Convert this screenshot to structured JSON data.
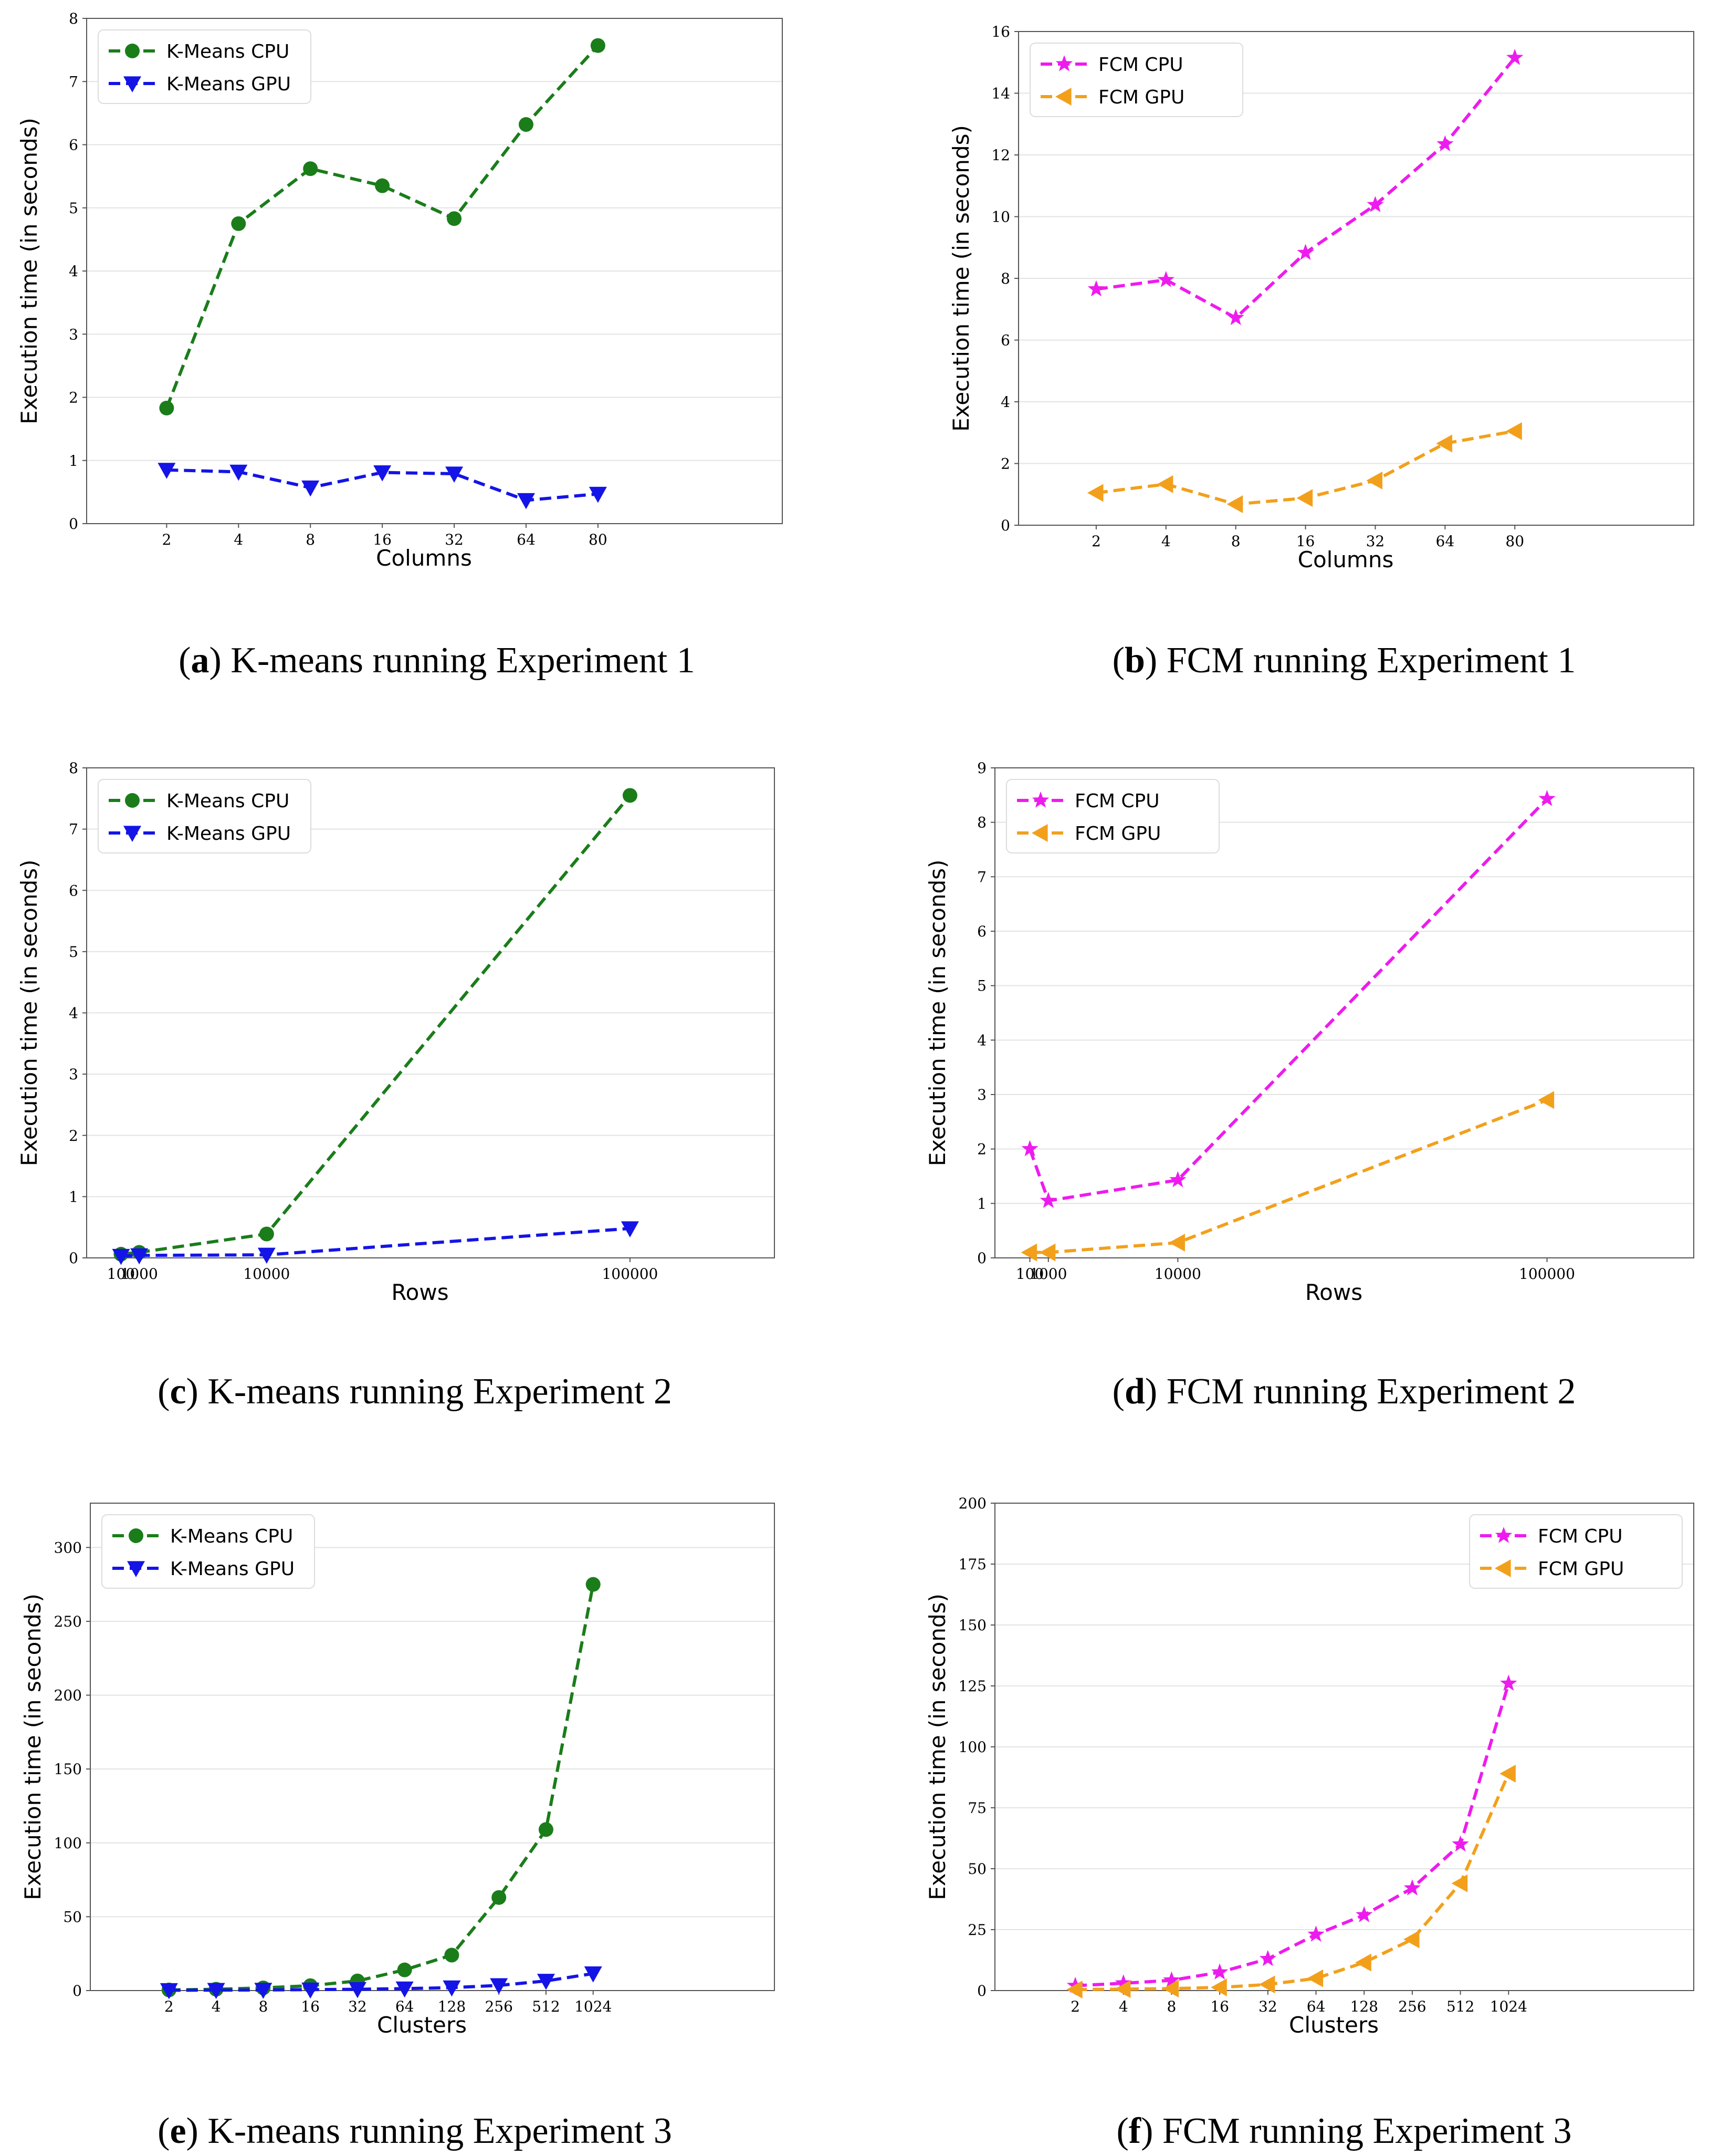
{
  "chart_data": [
    {
      "id": "a",
      "type": "line",
      "caption_letter": "a",
      "caption_text": " K-means running Experiment 1",
      "categories": [
        "2",
        "4",
        "8",
        "16",
        "32",
        "64",
        "80"
      ],
      "xlabel": "Columns",
      "ylabel": "Execution time (in seconds)",
      "ylim": [
        0,
        8
      ],
      "yticks": [
        0,
        1,
        2,
        3,
        4,
        5,
        6,
        7,
        8
      ],
      "legend_position": "top-left",
      "grid": "horizontal",
      "series": [
        {
          "name": "K-Means CPU",
          "marker": "circle",
          "color": "#1a7d1a",
          "values": [
            1.83,
            4.75,
            5.62,
            5.35,
            4.83,
            6.32,
            7.57
          ]
        },
        {
          "name": "K-Means GPU",
          "marker": "triangle-down",
          "color": "#1414e6",
          "values": [
            0.85,
            0.82,
            0.57,
            0.81,
            0.79,
            0.37,
            0.47
          ]
        }
      ]
    },
    {
      "id": "b",
      "type": "line",
      "caption_letter": "b",
      "caption_text": " FCM running Experiment 1",
      "categories": [
        "2",
        "4",
        "8",
        "16",
        "32",
        "64",
        "80"
      ],
      "xlabel": "Columns",
      "ylabel": "Execution time (in seconds)",
      "ylim": [
        0,
        16
      ],
      "yticks": [
        0,
        2,
        4,
        6,
        8,
        10,
        12,
        14,
        16
      ],
      "legend_position": "top-left",
      "grid": "horizontal",
      "series": [
        {
          "name": "FCM CPU",
          "marker": "star",
          "color": "#ee1bee",
          "values": [
            7.65,
            7.95,
            6.72,
            8.83,
            10.38,
            12.35,
            15.15
          ]
        },
        {
          "name": "FCM GPU",
          "marker": "triangle-left",
          "color": "#f2a01b",
          "values": [
            1.05,
            1.33,
            0.68,
            0.88,
            1.45,
            2.65,
            3.05
          ]
        }
      ]
    },
    {
      "id": "c",
      "type": "line",
      "caption_letter": "c",
      "caption_text": " K-means running Experiment 2",
      "x": [
        100,
        1000,
        10000,
        100000
      ],
      "xtick_labels": [
        "100",
        "1000",
        "10000",
        "100000"
      ],
      "xscale": "log-offset",
      "xlabel": "Rows",
      "ylabel": "Execution time (in seconds)",
      "ylim": [
        0,
        8
      ],
      "yticks": [
        0,
        1,
        2,
        3,
        4,
        5,
        6,
        7,
        8
      ],
      "legend_position": "top-left",
      "grid": "horizontal",
      "series": [
        {
          "name": "K-Means CPU",
          "marker": "circle",
          "color": "#1a7d1a",
          "values": [
            0.06,
            0.09,
            0.39,
            7.55
          ]
        },
        {
          "name": "K-Means GPU",
          "marker": "triangle-down",
          "color": "#1414e6",
          "values": [
            0.03,
            0.04,
            0.05,
            0.48
          ]
        }
      ]
    },
    {
      "id": "d",
      "type": "line",
      "caption_letter": "d",
      "caption_text": " FCM running Experiment 2",
      "x": [
        100,
        1000,
        10000,
        100000
      ],
      "xtick_labels": [
        "100",
        "1000",
        "10000",
        "100000"
      ],
      "xscale": "log-offset",
      "xlabel": "Rows",
      "ylabel": "Execution time (in seconds)",
      "ylim": [
        0,
        9
      ],
      "yticks": [
        0,
        1,
        2,
        3,
        4,
        5,
        6,
        7,
        8,
        9
      ],
      "legend_position": "top-left",
      "grid": "horizontal",
      "series": [
        {
          "name": "FCM CPU",
          "marker": "star",
          "color": "#ee1bee",
          "values": [
            2.0,
            1.05,
            1.43,
            8.43
          ]
        },
        {
          "name": "FCM GPU",
          "marker": "triangle-left",
          "color": "#f2a01b",
          "values": [
            0.1,
            0.1,
            0.28,
            2.9
          ]
        }
      ]
    },
    {
      "id": "e",
      "type": "line",
      "caption_letter": "e",
      "caption_text": " K-means running Experiment 3",
      "categories": [
        "2",
        "4",
        "8",
        "16",
        "32",
        "64",
        "128",
        "256",
        "512",
        "1024"
      ],
      "xlabel": "Clusters",
      "ylabel": "Execution time (in seconds)",
      "ylim": [
        0,
        330
      ],
      "yticks": [
        0,
        50,
        100,
        150,
        200,
        250,
        300
      ],
      "legend_position": "top-left",
      "grid": "horizontal",
      "series": [
        {
          "name": "K-Means CPU",
          "marker": "circle",
          "color": "#1a7d1a",
          "values": [
            0.4,
            0.9,
            1.8,
            3.3,
            6.5,
            14.0,
            24.0,
            63.0,
            109.0,
            275.0
          ]
        },
        {
          "name": "K-Means GPU",
          "marker": "triangle-down",
          "color": "#1414e6",
          "values": [
            0.2,
            0.3,
            0.4,
            0.6,
            0.9,
            1.3,
            2.0,
            3.5,
            6.5,
            11.5
          ]
        }
      ]
    },
    {
      "id": "f",
      "type": "line",
      "caption_letter": "f",
      "caption_text": " FCM running Experiment 3",
      "categories": [
        "2",
        "4",
        "8",
        "16",
        "32",
        "64",
        "128",
        "256",
        "512",
        "1024"
      ],
      "xlabel": "Clusters",
      "ylabel": "Execution time (in seconds)",
      "ylim": [
        0,
        200
      ],
      "yticks": [
        0,
        25,
        50,
        75,
        100,
        125,
        150,
        175,
        200
      ],
      "legend_position": "top-right",
      "grid": "horizontal",
      "series": [
        {
          "name": "FCM CPU",
          "marker": "star",
          "color": "#ee1bee",
          "values": [
            2.0,
            3.0,
            4.2,
            7.5,
            13.0,
            23.0,
            31.0,
            42.0,
            60.0,
            126.0
          ]
        },
        {
          "name": "FCM GPU",
          "marker": "triangle-left",
          "color": "#f2a01b",
          "values": [
            0.4,
            0.6,
            0.8,
            1.3,
            2.5,
            5.0,
            11.5,
            21.0,
            44.0,
            89.0
          ]
        }
      ]
    }
  ]
}
